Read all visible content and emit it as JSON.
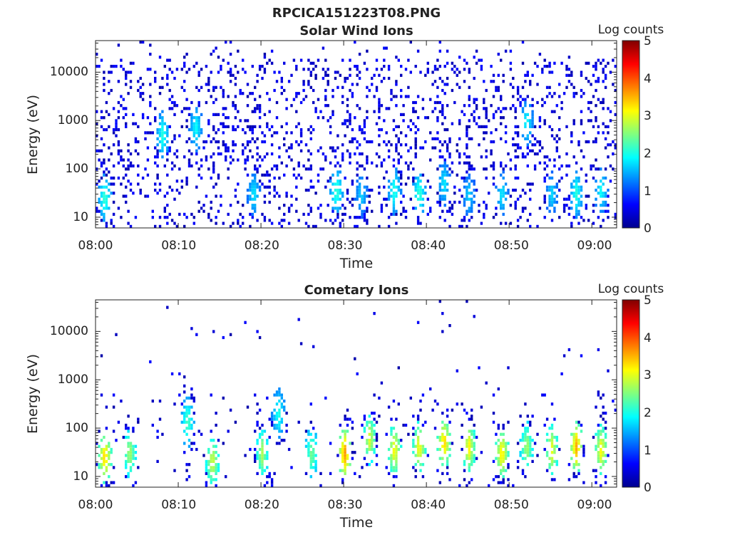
{
  "figure": {
    "title": "RPCICA151223T08.PNG"
  },
  "colorbar": {
    "title": "Log counts",
    "ticks": [
      "0",
      "1",
      "2",
      "3",
      "4",
      "5"
    ],
    "range": [
      0,
      5
    ],
    "colormap": "jet"
  },
  "chart_data": [
    {
      "type": "heatmap",
      "title": "Solar Wind Ions",
      "xlabel": "Time",
      "ylabel": "Energy (eV)",
      "y_scale": "log",
      "ylim": [
        6,
        45000
      ],
      "xlim": [
        "08:00",
        "09:03"
      ],
      "x_ticks": [
        "08:00",
        "08:10",
        "08:20",
        "08:30",
        "08:40",
        "08:50",
        "09:00"
      ],
      "y_ticks": [
        "10",
        "100",
        "1000",
        "10000"
      ],
      "value_unit": "Log counts",
      "value_range": [
        0,
        5
      ],
      "activity": [
        {
          "time_min": 1,
          "energy_eV": 25,
          "log_counts": 1.9
        },
        {
          "time_min": 8,
          "energy_eV": 500,
          "log_counts": 1.8
        },
        {
          "time_min": 12,
          "energy_eV": 700,
          "log_counts": 1.7
        },
        {
          "time_min": 19,
          "energy_eV": 30,
          "log_counts": 1.6
        },
        {
          "time_min": 29,
          "energy_eV": 35,
          "log_counts": 1.9
        },
        {
          "time_min": 32,
          "energy_eV": 30,
          "log_counts": 1.5
        },
        {
          "time_min": 36,
          "energy_eV": 35,
          "log_counts": 1.8
        },
        {
          "time_min": 39,
          "energy_eV": 30,
          "log_counts": 1.9
        },
        {
          "time_min": 42,
          "energy_eV": 50,
          "log_counts": 1.6
        },
        {
          "time_min": 45,
          "energy_eV": 28,
          "log_counts": 1.5
        },
        {
          "time_min": 49,
          "energy_eV": 30,
          "log_counts": 1.6
        },
        {
          "time_min": 52,
          "energy_eV": 900,
          "log_counts": 1.7
        },
        {
          "time_min": 55,
          "energy_eV": 30,
          "log_counts": 1.5
        },
        {
          "time_min": 58,
          "energy_eV": 30,
          "log_counts": 1.8
        },
        {
          "time_min": 61,
          "energy_eV": 35,
          "log_counts": 1.7
        }
      ]
    },
    {
      "type": "heatmap",
      "title": "Cometary Ions",
      "xlabel": "Time",
      "ylabel": "Energy (eV)",
      "y_scale": "log",
      "ylim": [
        6,
        45000
      ],
      "xlim": [
        "08:00",
        "09:03"
      ],
      "x_ticks": [
        "08:00",
        "08:10",
        "08:20",
        "08:30",
        "08:40",
        "08:50",
        "09:00"
      ],
      "y_ticks": [
        "10",
        "100",
        "1000",
        "10000"
      ],
      "value_unit": "Log counts",
      "value_range": [
        0,
        5
      ],
      "activity": [
        {
          "time_min": 1,
          "energy_eV": 25,
          "log_counts": 3.0
        },
        {
          "time_min": 4,
          "energy_eV": 30,
          "log_counts": 2.4
        },
        {
          "time_min": 11,
          "energy_eV": 130,
          "log_counts": 2.0
        },
        {
          "time_min": 14,
          "energy_eV": 20,
          "log_counts": 2.6
        },
        {
          "time_min": 20,
          "energy_eV": 30,
          "log_counts": 2.4
        },
        {
          "time_min": 22,
          "energy_eV": 200,
          "log_counts": 1.8
        },
        {
          "time_min": 26,
          "energy_eV": 30,
          "log_counts": 2.2
        },
        {
          "time_min": 30,
          "energy_eV": 30,
          "log_counts": 3.2
        },
        {
          "time_min": 33,
          "energy_eV": 60,
          "log_counts": 2.6
        },
        {
          "time_min": 36,
          "energy_eV": 35,
          "log_counts": 2.8
        },
        {
          "time_min": 39,
          "energy_eV": 40,
          "log_counts": 2.8
        },
        {
          "time_min": 42,
          "energy_eV": 50,
          "log_counts": 3.0
        },
        {
          "time_min": 45,
          "energy_eV": 40,
          "log_counts": 2.8
        },
        {
          "time_min": 49,
          "energy_eV": 30,
          "log_counts": 2.9
        },
        {
          "time_min": 52,
          "energy_eV": 40,
          "log_counts": 2.4
        },
        {
          "time_min": 55,
          "energy_eV": 35,
          "log_counts": 2.7
        },
        {
          "time_min": 58,
          "energy_eV": 40,
          "log_counts": 3.1
        },
        {
          "time_min": 61,
          "energy_eV": 35,
          "log_counts": 2.8
        }
      ]
    }
  ]
}
